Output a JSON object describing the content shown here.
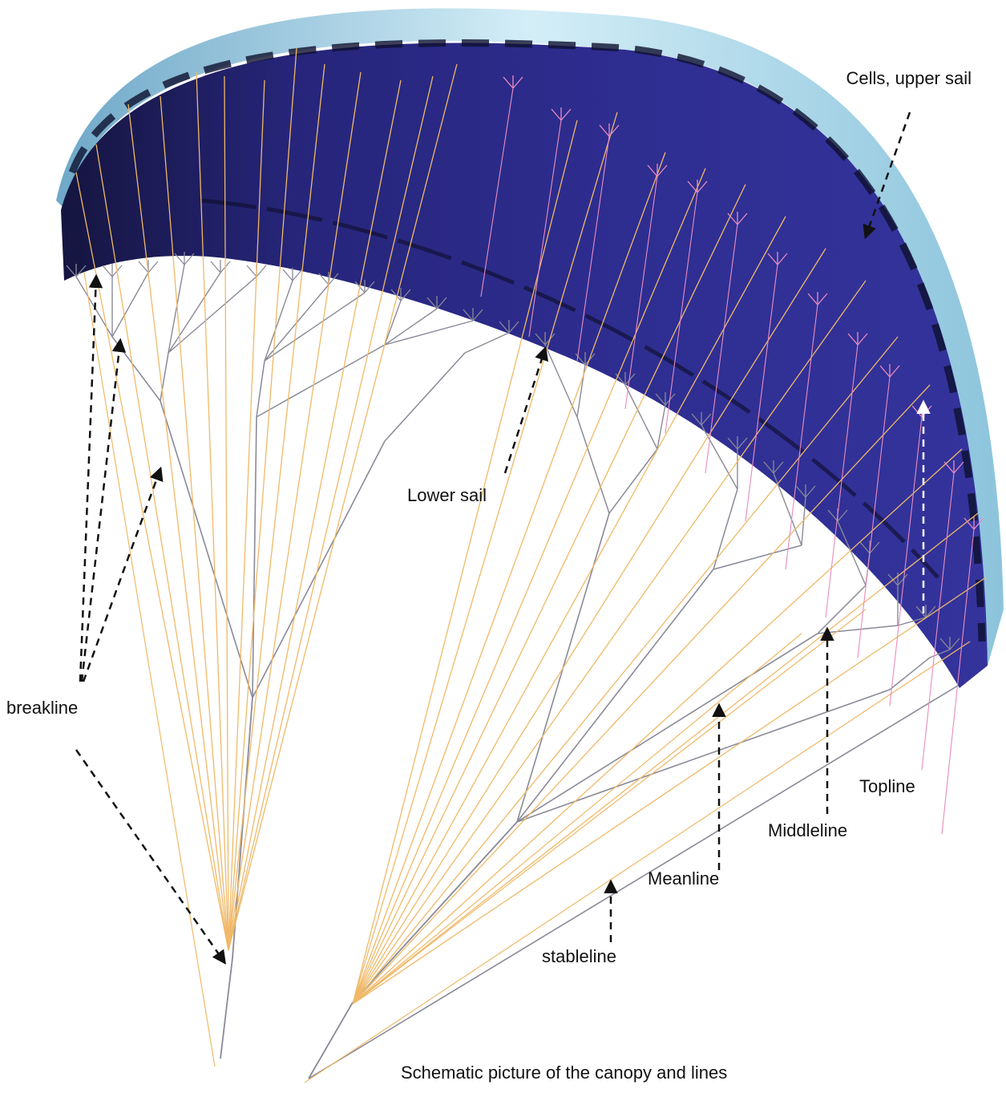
{
  "labels": {
    "cells_upper_sail": "Cells, upper sail",
    "lower_sail": "Lower sail",
    "breakline": "breakline",
    "topline": "Topline",
    "middleline": "Middleline",
    "meanline": "Meanline",
    "stableline": "stableline",
    "caption": "Schematic picture of the canopy and lines"
  },
  "colors": {
    "canopy": "#2e2c8c",
    "canopy_dark": "#151540",
    "upper_sail_edge": "#a8d8ea",
    "line_orange": "#f0b968",
    "line_gray": "#8a8a98",
    "line_pink": "#e88cc0",
    "arrow": "#111111",
    "arrow_on_canopy": "#ffffff"
  }
}
